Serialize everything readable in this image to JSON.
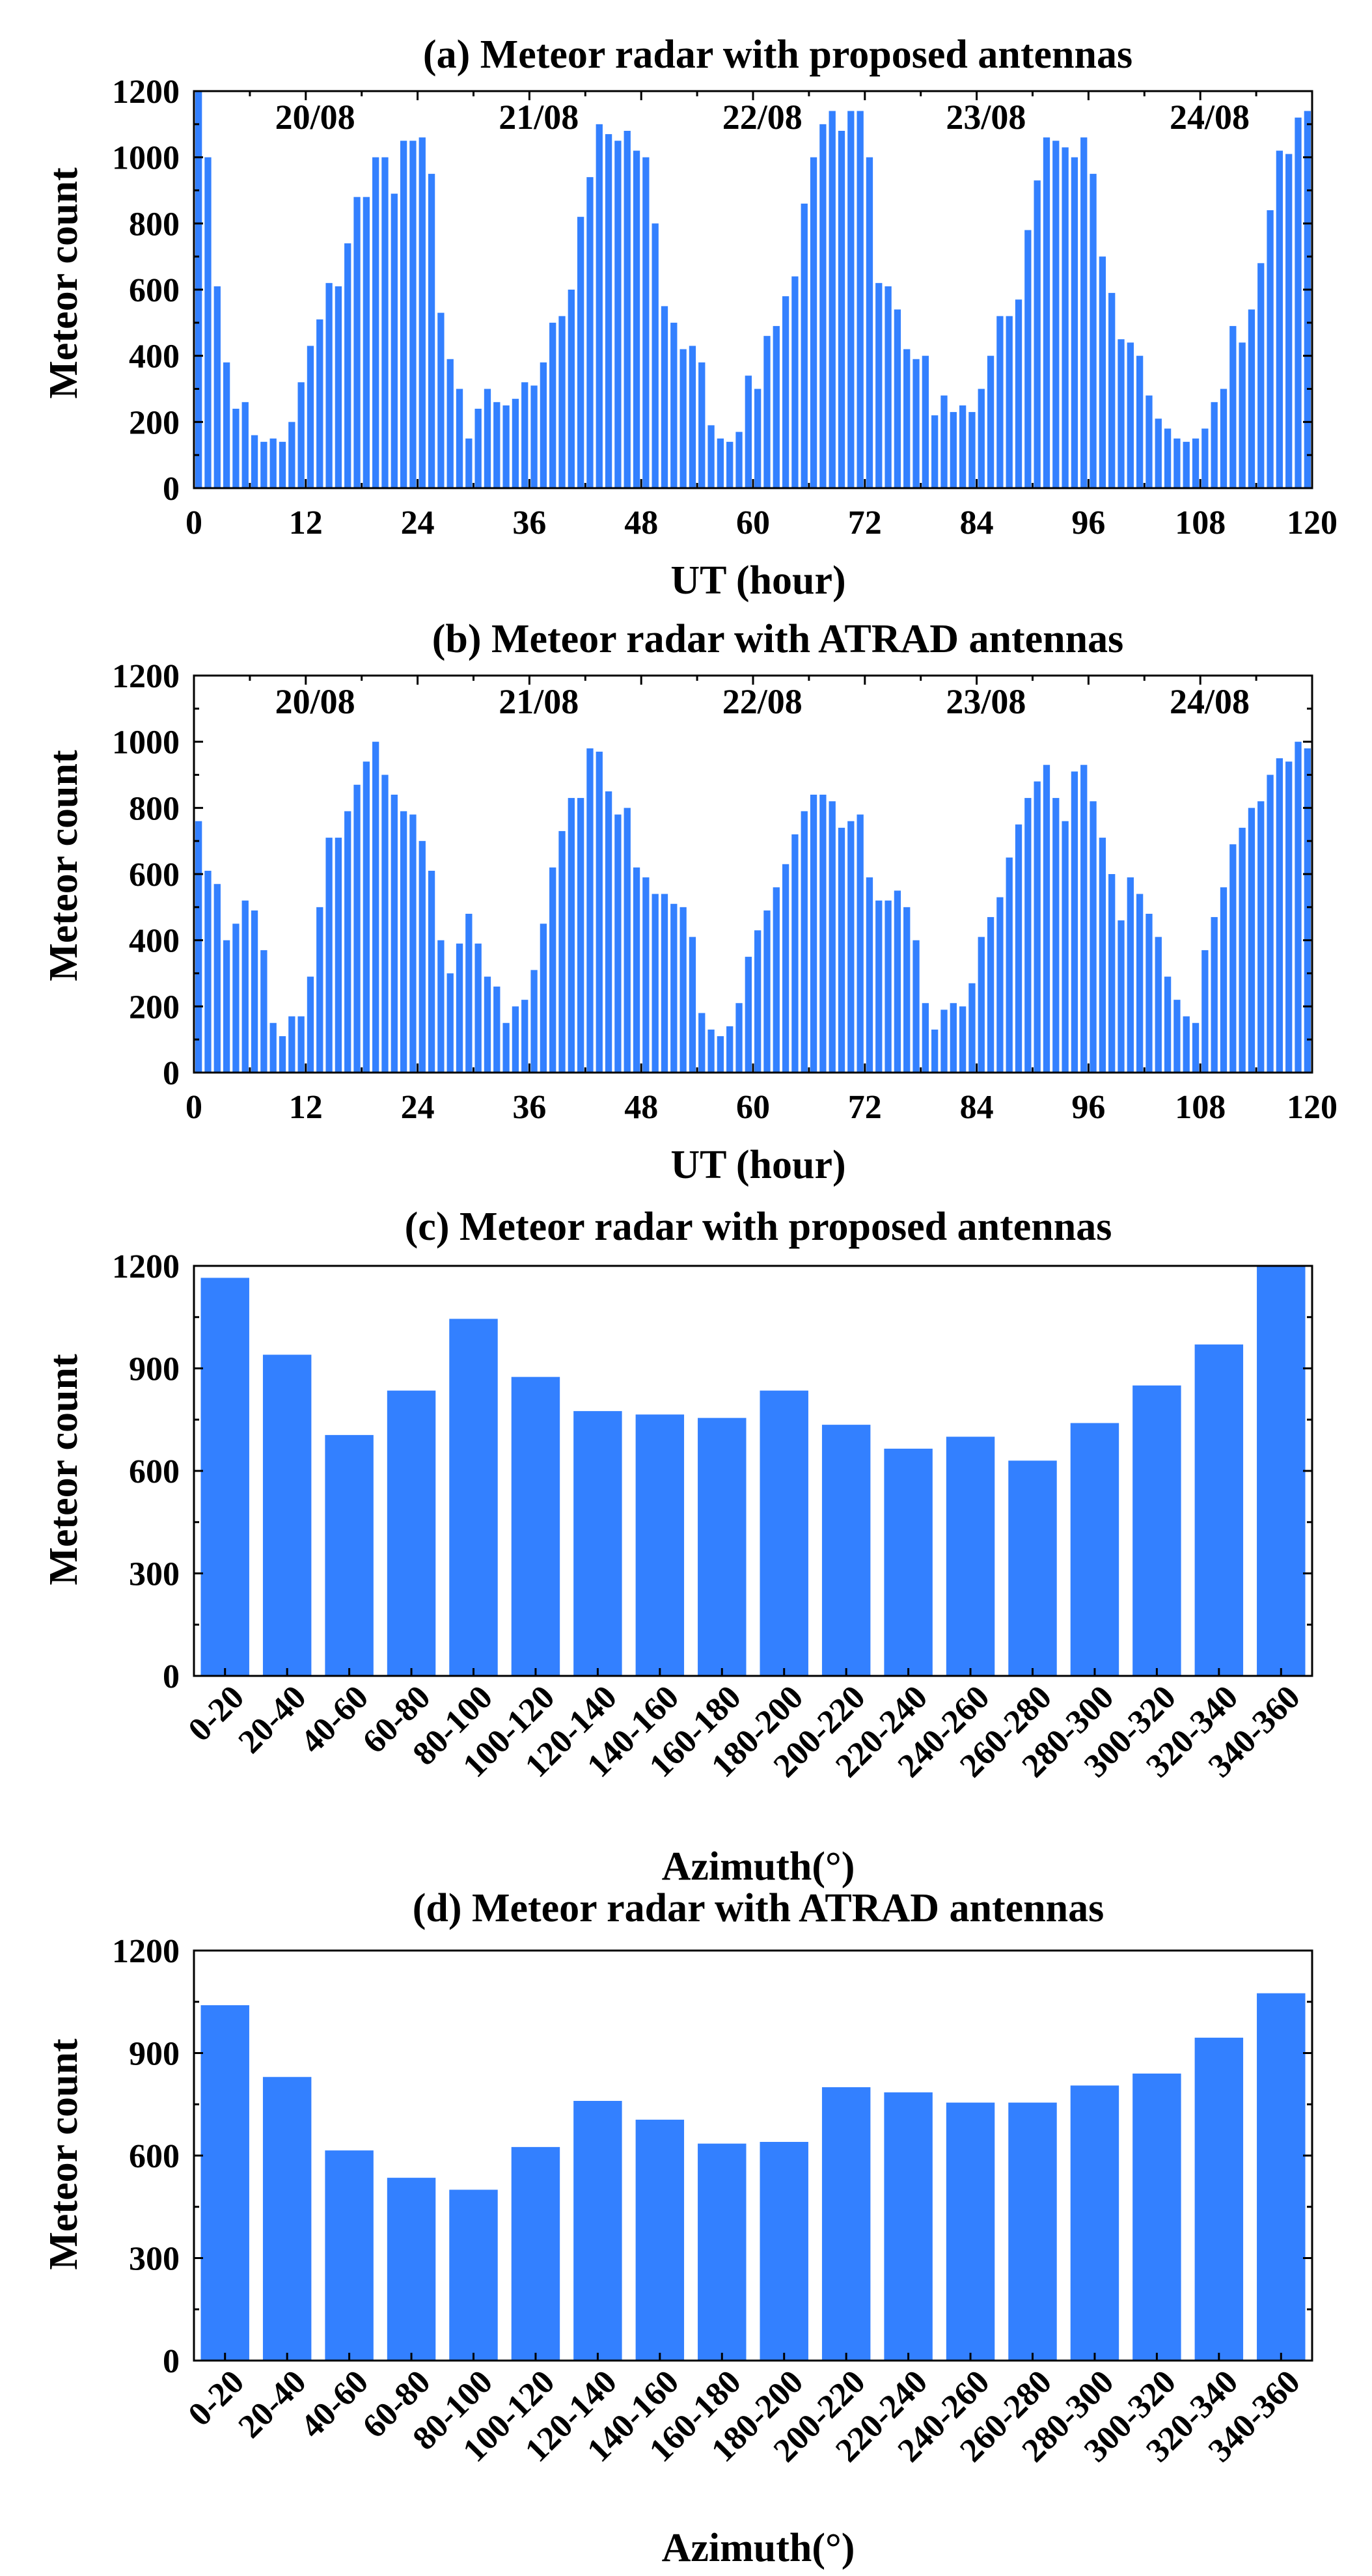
{
  "bar_color": "#3380ff",
  "chart_data": [
    {
      "type": "bar",
      "title": "(a) Meteor radar with proposed antennas",
      "xlabel": "UT (hour)",
      "ylabel": "Meteor count",
      "xlim": [
        0,
        120
      ],
      "ylim": [
        0,
        1200
      ],
      "xticks": [
        0,
        12,
        24,
        36,
        48,
        60,
        72,
        84,
        96,
        108,
        120
      ],
      "yticks": [
        0,
        200,
        400,
        600,
        800,
        1000,
        1200
      ],
      "annotations": [
        {
          "text": "20/08",
          "x": 13
        },
        {
          "text": "21/08",
          "x": 37
        },
        {
          "text": "22/08",
          "x": 61
        },
        {
          "text": "23/08",
          "x": 85
        },
        {
          "text": "24/08",
          "x": 109
        }
      ],
      "x": [
        1,
        2,
        3,
        4,
        5,
        6,
        7,
        8,
        9,
        10,
        11,
        12,
        13,
        14,
        15,
        16,
        17,
        18,
        19,
        20,
        21,
        22,
        23,
        24,
        25,
        26,
        27,
        28,
        29,
        30,
        31,
        32,
        33,
        34,
        35,
        36,
        37,
        38,
        39,
        40,
        41,
        42,
        43,
        44,
        45,
        46,
        47,
        48,
        49,
        50,
        51,
        52,
        53,
        54,
        55,
        56,
        57,
        58,
        59,
        60,
        61,
        62,
        63,
        64,
        65,
        66,
        67,
        68,
        69,
        70,
        71,
        72,
        73,
        74,
        75,
        76,
        77,
        78,
        79,
        80,
        81,
        82,
        83,
        84,
        85,
        86,
        87,
        88,
        89,
        90,
        91,
        92,
        93,
        94,
        95,
        96,
        97,
        98,
        99,
        100,
        101,
        102,
        103,
        104,
        105,
        106,
        107,
        108,
        109,
        110,
        111,
        112,
        113,
        114,
        115,
        116,
        117,
        118,
        119,
        120
      ],
      "values": [
        1200,
        1000,
        610,
        380,
        240,
        260,
        160,
        140,
        150,
        140,
        200,
        320,
        430,
        510,
        620,
        610,
        740,
        880,
        880,
        1000,
        1000,
        890,
        1050,
        1050,
        1060,
        950,
        530,
        390,
        300,
        150,
        240,
        300,
        260,
        250,
        270,
        320,
        310,
        380,
        500,
        520,
        600,
        820,
        940,
        1100,
        1070,
        1050,
        1080,
        1020,
        1000,
        800,
        550,
        500,
        420,
        430,
        380,
        190,
        150,
        140,
        170,
        340,
        300,
        460,
        490,
        580,
        640,
        860,
        1000,
        1100,
        1140,
        1080,
        1140,
        1140,
        1000,
        620,
        610,
        540,
        420,
        390,
        400,
        220,
        280,
        230,
        250,
        230,
        300,
        400,
        520,
        520,
        570,
        780,
        930,
        1060,
        1050,
        1030,
        1000,
        1060,
        950,
        700,
        590,
        450,
        440,
        400,
        280,
        210,
        180,
        150,
        140,
        150,
        180,
        260,
        300,
        490,
        440,
        540,
        680,
        840,
        1020,
        1010,
        1120,
        1140
      ]
    },
    {
      "type": "bar",
      "title": "(b) Meteor radar with ATRAD antennas",
      "xlabel": "UT (hour)",
      "ylabel": "Meteor count",
      "xlim": [
        0,
        120
      ],
      "ylim": [
        0,
        1200
      ],
      "xticks": [
        0,
        12,
        24,
        36,
        48,
        60,
        72,
        84,
        96,
        108,
        120
      ],
      "yticks": [
        0,
        200,
        400,
        600,
        800,
        1000,
        1200
      ],
      "annotations": [
        {
          "text": "20/08",
          "x": 13
        },
        {
          "text": "21/08",
          "x": 37
        },
        {
          "text": "22/08",
          "x": 61
        },
        {
          "text": "23/08",
          "x": 85
        },
        {
          "text": "24/08",
          "x": 109
        }
      ],
      "x": [
        1,
        2,
        3,
        4,
        5,
        6,
        7,
        8,
        9,
        10,
        11,
        12,
        13,
        14,
        15,
        16,
        17,
        18,
        19,
        20,
        21,
        22,
        23,
        24,
        25,
        26,
        27,
        28,
        29,
        30,
        31,
        32,
        33,
        34,
        35,
        36,
        37,
        38,
        39,
        40,
        41,
        42,
        43,
        44,
        45,
        46,
        47,
        48,
        49,
        50,
        51,
        52,
        53,
        54,
        55,
        56,
        57,
        58,
        59,
        60,
        61,
        62,
        63,
        64,
        65,
        66,
        67,
        68,
        69,
        70,
        71,
        72,
        73,
        74,
        75,
        76,
        77,
        78,
        79,
        80,
        81,
        82,
        83,
        84,
        85,
        86,
        87,
        88,
        89,
        90,
        91,
        92,
        93,
        94,
        95,
        96,
        97,
        98,
        99,
        100,
        101,
        102,
        103,
        104,
        105,
        106,
        107,
        108,
        109,
        110,
        111,
        112,
        113,
        114,
        115,
        116,
        117,
        118,
        119,
        120
      ],
      "values": [
        760,
        610,
        570,
        400,
        450,
        520,
        490,
        370,
        150,
        110,
        170,
        170,
        290,
        500,
        710,
        710,
        790,
        870,
        940,
        1000,
        900,
        840,
        790,
        780,
        700,
        610,
        400,
        300,
        390,
        480,
        390,
        290,
        260,
        150,
        200,
        220,
        310,
        450,
        620,
        730,
        830,
        830,
        980,
        970,
        850,
        780,
        800,
        620,
        590,
        540,
        540,
        510,
        500,
        410,
        180,
        130,
        110,
        140,
        210,
        350,
        430,
        490,
        560,
        630,
        720,
        790,
        840,
        840,
        820,
        740,
        760,
        780,
        590,
        520,
        520,
        550,
        500,
        400,
        210,
        130,
        190,
        210,
        200,
        270,
        410,
        470,
        530,
        650,
        750,
        830,
        880,
        930,
        830,
        760,
        910,
        930,
        820,
        710,
        600,
        460,
        590,
        540,
        480,
        410,
        290,
        220,
        170,
        150,
        370,
        470,
        560,
        690,
        740,
        800,
        820,
        900,
        950,
        940,
        1000,
        980
      ]
    },
    {
      "type": "bar",
      "title": "(c) Meteor radar with proposed antennas",
      "xlabel": "Azimuth(°)",
      "ylabel": "Meteor count",
      "ylim": [
        0,
        1200
      ],
      "yticks": [
        0,
        300,
        600,
        900,
        1200
      ],
      "categories": [
        "0-20",
        "20-40",
        "40-60",
        "60-80",
        "80-100",
        "100-120",
        "120-140",
        "140-160",
        "160-180",
        "180-200",
        "200-220",
        "220-240",
        "240-260",
        "260-280",
        "280-300",
        "300-320",
        "320-340",
        "340-360"
      ],
      "values": [
        1165,
        940,
        705,
        835,
        1045,
        875,
        775,
        765,
        755,
        835,
        735,
        665,
        700,
        630,
        740,
        850,
        970,
        1200
      ]
    },
    {
      "type": "bar",
      "title": "(d) Meteor radar with ATRAD antennas",
      "xlabel": "Azimuth(°)",
      "ylabel": "Meteor count",
      "ylim": [
        0,
        1200
      ],
      "yticks": [
        0,
        300,
        600,
        900,
        1200
      ],
      "categories": [
        "0-20",
        "20-40",
        "40-60",
        "60-80",
        "80-100",
        "100-120",
        "120-140",
        "140-160",
        "160-180",
        "180-200",
        "200-220",
        "220-240",
        "240-260",
        "260-280",
        "280-300",
        "300-320",
        "320-340",
        "340-360"
      ],
      "values": [
        1040,
        830,
        615,
        535,
        500,
        625,
        760,
        705,
        635,
        640,
        800,
        785,
        755,
        755,
        805,
        840,
        945,
        1075
      ]
    }
  ]
}
